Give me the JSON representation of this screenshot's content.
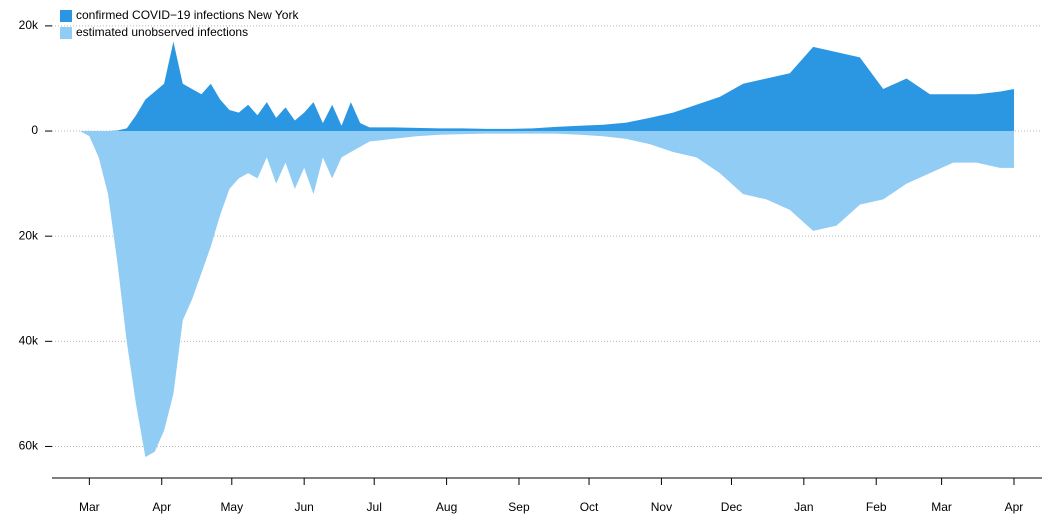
{
  "chart_data": {
    "type": "mirrored_area",
    "x": [
      -16,
      -12,
      -8,
      -4,
      0,
      4,
      8,
      12,
      16,
      20,
      24,
      28,
      32,
      36,
      40,
      44,
      48,
      52,
      56,
      60,
      64,
      68,
      72,
      76,
      80,
      84,
      88,
      92,
      96,
      100,
      104,
      108,
      112,
      116,
      120,
      130,
      140,
      150,
      160,
      170,
      180,
      190,
      200,
      210,
      220,
      230,
      240,
      250,
      260,
      270,
      280,
      290,
      300,
      310,
      320,
      330,
      340,
      350,
      360,
      370,
      380,
      390,
      396
    ],
    "series": [
      {
        "name": "confirmed COVID−19 infections New York",
        "color": "#2b97e2",
        "values": [
          0,
          0,
          0,
          0,
          0,
          0,
          0,
          100,
          500,
          3000,
          6000,
          7500,
          9000,
          17000,
          9000,
          8000,
          7000,
          9000,
          6000,
          4000,
          3500,
          5000,
          3000,
          5500,
          2500,
          4500,
          2000,
          3500,
          5500,
          1500,
          5000,
          1000,
          5500,
          1500,
          700,
          700,
          600,
          500,
          500,
          400,
          400,
          500,
          800,
          1000,
          1200,
          1600,
          2500,
          3500,
          5000,
          6500,
          9000,
          10000,
          11000,
          16000,
          15000,
          14000,
          8000,
          10000,
          7000,
          7000,
          7000,
          7500,
          8000
        ]
      },
      {
        "name": "estimated unobserved infections",
        "color": "#90ccf3",
        "values": [
          0,
          0,
          0,
          0,
          -1000,
          -5000,
          -12000,
          -25000,
          -40000,
          -52000,
          -62000,
          -61000,
          -57000,
          -50000,
          -36000,
          -32000,
          -27000,
          -22000,
          -16000,
          -11000,
          -9000,
          -8000,
          -9000,
          -5000,
          -10000,
          -6000,
          -11000,
          -7000,
          -12000,
          -5000,
          -9000,
          -5000,
          -4000,
          -3000,
          -2000,
          -1500,
          -1000,
          -700,
          -600,
          -500,
          -500,
          -500,
          -500,
          -700,
          -1000,
          -1500,
          -2500,
          -4000,
          -5000,
          -8000,
          -12000,
          -13000,
          -15000,
          -19000,
          -18000,
          -14000,
          -13000,
          -10000,
          -8000,
          -6000,
          -6000,
          -7000,
          -7000
        ]
      }
    ],
    "xlim": [
      -16,
      408
    ],
    "xticks": [
      {
        "value": 0,
        "label": "Mar"
      },
      {
        "value": 31,
        "label": "Apr"
      },
      {
        "value": 61,
        "label": "May"
      },
      {
        "value": 92,
        "label": "Jun"
      },
      {
        "value": 122,
        "label": "Jul"
      },
      {
        "value": 153,
        "label": "Aug"
      },
      {
        "value": 184,
        "label": "Sep"
      },
      {
        "value": 214,
        "label": "Oct"
      },
      {
        "value": 245,
        "label": "Nov"
      },
      {
        "value": 275,
        "label": "Dec"
      },
      {
        "value": 306,
        "label": "Jan"
      },
      {
        "value": 337,
        "label": "Feb"
      },
      {
        "value": 365,
        "label": "Mar"
      },
      {
        "value": 396,
        "label": "Apr"
      }
    ],
    "ylim": [
      -66000,
      21500
    ],
    "yticks": [
      {
        "value": 20000,
        "label": "20k"
      },
      0,
      {
        "value": -20000,
        "label": "20k"
      },
      {
        "value": -40000,
        "label": "40k"
      },
      {
        "value": -60000,
        "label": "60k"
      }
    ],
    "grid": true
  }
}
